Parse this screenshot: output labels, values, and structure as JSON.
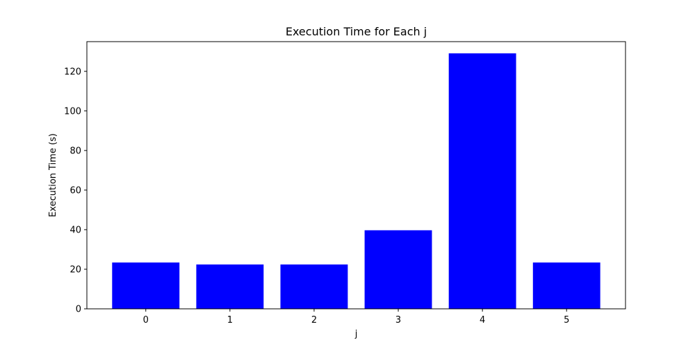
{
  "chart_data": {
    "type": "bar",
    "title": "Execution Time for Each j",
    "xlabel": "j",
    "ylabel": "Execution Time (s)",
    "categories": [
      "0",
      "1",
      "2",
      "3",
      "4",
      "5"
    ],
    "values": [
      23.4,
      22.4,
      22.4,
      39.7,
      129.1,
      23.4
    ],
    "ylim": [
      0,
      135
    ],
    "yticks": [
      0,
      20,
      40,
      60,
      80,
      100,
      120
    ],
    "bar_color": "#0000ff",
    "grid": false
  }
}
